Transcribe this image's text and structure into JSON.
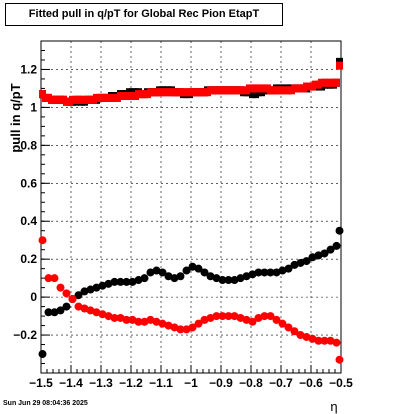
{
  "chart_data": {
    "type": "scatter",
    "title": "Fitted pull in q/pT for Global Rec Pion EtapT",
    "ylabel": "pull in q/pT",
    "xlabel": "η",
    "xlim": [
      -1.5,
      -0.5
    ],
    "ylim": [
      -0.4,
      1.35
    ],
    "x_ticks": [
      -1.5,
      -1.4,
      -1.3,
      -1.2,
      -1.1,
      -1,
      -0.9,
      -0.8,
      -0.7,
      -0.6,
      -0.5
    ],
    "x_tick_labels": [
      "−1.5",
      "−1.4",
      "−1.3",
      "−1.2",
      "−1.1",
      "−1",
      "−0.9",
      "−0.8",
      "−0.7",
      "−0.6",
      "−0.5"
    ],
    "y_ticks": [
      -0.2,
      0,
      0.2,
      0.4,
      0.6,
      0.8,
      1,
      1.2
    ],
    "y_tick_labels": [
      "−0.2",
      "0",
      "0.2",
      "0.4",
      "0.6",
      "0.8",
      "1",
      "1.2"
    ],
    "grid": true,
    "marker": "square",
    "series": [
      {
        "color": "#000000",
        "marker": "square",
        "x": [
          -1.495,
          -1.485,
          -1.475,
          -1.465,
          -1.455,
          -1.445,
          -1.435,
          -1.425,
          -1.415,
          -1.405,
          -1.395,
          -1.385,
          -1.375,
          -1.365,
          -1.355,
          -1.345,
          -1.335,
          -1.325,
          -1.315,
          -1.305,
          -1.295,
          -1.285,
          -1.275,
          -1.265,
          -1.255,
          -1.245,
          -1.235,
          -1.225,
          -1.215,
          -1.205,
          -1.195,
          -1.185,
          -1.175,
          -1.165,
          -1.155,
          -1.145,
          -1.135,
          -1.125,
          -1.115,
          -1.105,
          -1.095,
          -1.085,
          -1.075,
          -1.065,
          -1.055,
          -1.045,
          -1.035,
          -1.025,
          -1.015,
          -1.005,
          -0.995,
          -0.985,
          -0.975,
          -0.965,
          -0.955,
          -0.945,
          -0.935,
          -0.925,
          -0.915,
          -0.905,
          -0.895,
          -0.885,
          -0.875,
          -0.865,
          -0.855,
          -0.845,
          -0.835,
          -0.825,
          -0.815,
          -0.805,
          -0.795,
          -0.785,
          -0.775,
          -0.765,
          -0.755,
          -0.745,
          -0.735,
          -0.725,
          -0.715,
          -0.705,
          -0.695,
          -0.685,
          -0.675,
          -0.665,
          -0.655,
          -0.645,
          -0.635,
          -0.625,
          -0.615,
          -0.605,
          -0.595,
          -0.585,
          -0.575,
          -0.565,
          -0.555,
          -0.545,
          -0.535,
          -0.525,
          -0.515,
          -0.505
        ],
        "y": [
          1.07,
          1.05,
          1.05,
          1.04,
          1.04,
          1.04,
          1.04,
          1.04,
          1.03,
          1.03,
          1.03,
          1.03,
          1.04,
          1.03,
          1.03,
          1.04,
          1.04,
          1.04,
          1.04,
          1.05,
          1.05,
          1.05,
          1.05,
          1.06,
          1.06,
          1.06,
          1.07,
          1.07,
          1.07,
          1.08,
          1.08,
          1.08,
          1.08,
          1.07,
          1.07,
          1.08,
          1.08,
          1.08,
          1.08,
          1.09,
          1.09,
          1.09,
          1.09,
          1.09,
          1.08,
          1.08,
          1.08,
          1.07,
          1.07,
          1.07,
          1.08,
          1.08,
          1.08,
          1.08,
          1.08,
          1.09,
          1.09,
          1.09,
          1.09,
          1.09,
          1.09,
          1.09,
          1.09,
          1.09,
          1.09,
          1.09,
          1.09,
          1.08,
          1.08,
          1.08,
          1.07,
          1.07,
          1.08,
          1.08,
          1.09,
          1.09,
          1.09,
          1.09,
          1.1,
          1.1,
          1.1,
          1.1,
          1.1,
          1.1,
          1.1,
          1.1,
          1.1,
          1.1,
          1.1,
          1.11,
          1.11,
          1.11,
          1.11,
          1.11,
          1.12,
          1.12,
          1.12,
          1.12,
          1.13,
          1.24
        ]
      },
      {
        "color": "#ff0000",
        "marker": "square",
        "x": [
          -1.495,
          -1.485,
          -1.475,
          -1.465,
          -1.455,
          -1.445,
          -1.435,
          -1.425,
          -1.415,
          -1.405,
          -1.395,
          -1.385,
          -1.375,
          -1.365,
          -1.355,
          -1.345,
          -1.335,
          -1.325,
          -1.315,
          -1.305,
          -1.295,
          -1.285,
          -1.275,
          -1.265,
          -1.255,
          -1.245,
          -1.235,
          -1.225,
          -1.215,
          -1.205,
          -1.195,
          -1.185,
          -1.175,
          -1.165,
          -1.155,
          -1.145,
          -1.135,
          -1.125,
          -1.115,
          -1.105,
          -1.095,
          -1.085,
          -1.075,
          -1.065,
          -1.055,
          -1.045,
          -1.035,
          -1.025,
          -1.015,
          -1.005,
          -0.995,
          -0.985,
          -0.975,
          -0.965,
          -0.955,
          -0.945,
          -0.935,
          -0.925,
          -0.915,
          -0.905,
          -0.895,
          -0.885,
          -0.875,
          -0.865,
          -0.855,
          -0.845,
          -0.835,
          -0.825,
          -0.815,
          -0.805,
          -0.795,
          -0.785,
          -0.775,
          -0.765,
          -0.755,
          -0.745,
          -0.735,
          -0.725,
          -0.715,
          -0.705,
          -0.695,
          -0.685,
          -0.675,
          -0.665,
          -0.655,
          -0.645,
          -0.635,
          -0.625,
          -0.615,
          -0.605,
          -0.595,
          -0.585,
          -0.575,
          -0.565,
          -0.555,
          -0.545,
          -0.535,
          -0.525,
          -0.515,
          -0.505
        ],
        "y": [
          1.07,
          1.05,
          1.05,
          1.04,
          1.04,
          1.04,
          1.04,
          1.04,
          1.03,
          1.03,
          1.04,
          1.04,
          1.04,
          1.04,
          1.04,
          1.04,
          1.04,
          1.04,
          1.05,
          1.05,
          1.05,
          1.05,
          1.05,
          1.05,
          1.05,
          1.05,
          1.06,
          1.06,
          1.06,
          1.06,
          1.06,
          1.06,
          1.07,
          1.07,
          1.07,
          1.07,
          1.08,
          1.08,
          1.08,
          1.08,
          1.08,
          1.08,
          1.08,
          1.08,
          1.08,
          1.08,
          1.08,
          1.08,
          1.08,
          1.08,
          1.08,
          1.08,
          1.08,
          1.08,
          1.08,
          1.08,
          1.09,
          1.09,
          1.09,
          1.09,
          1.09,
          1.09,
          1.09,
          1.09,
          1.09,
          1.09,
          1.09,
          1.09,
          1.09,
          1.1,
          1.1,
          1.1,
          1.1,
          1.1,
          1.1,
          1.1,
          1.09,
          1.09,
          1.09,
          1.09,
          1.09,
          1.09,
          1.09,
          1.09,
          1.1,
          1.1,
          1.1,
          1.1,
          1.11,
          1.11,
          1.11,
          1.12,
          1.12,
          1.13,
          1.13,
          1.13,
          1.13,
          1.13,
          1.13,
          1.22
        ]
      },
      {
        "color": "#000000",
        "marker": "circle",
        "x": [
          -1.495,
          -1.475,
          -1.455,
          -1.435,
          -1.415,
          -1.395,
          -1.375,
          -1.355,
          -1.335,
          -1.315,
          -1.295,
          -1.275,
          -1.255,
          -1.235,
          -1.215,
          -1.195,
          -1.175,
          -1.155,
          -1.135,
          -1.115,
          -1.095,
          -1.075,
          -1.055,
          -1.035,
          -1.015,
          -0.995,
          -0.975,
          -0.955,
          -0.935,
          -0.915,
          -0.895,
          -0.875,
          -0.855,
          -0.835,
          -0.815,
          -0.795,
          -0.775,
          -0.755,
          -0.735,
          -0.715,
          -0.695,
          -0.675,
          -0.655,
          -0.635,
          -0.615,
          -0.595,
          -0.575,
          -0.555,
          -0.535,
          -0.515,
          -0.505
        ],
        "y": [
          -0.3,
          -0.08,
          -0.08,
          -0.07,
          -0.05,
          -0.01,
          0.01,
          0.03,
          0.04,
          0.05,
          0.06,
          0.07,
          0.08,
          0.08,
          0.08,
          0.08,
          0.09,
          0.1,
          0.13,
          0.14,
          0.13,
          0.11,
          0.1,
          0.11,
          0.14,
          0.16,
          0.15,
          0.13,
          0.11,
          0.1,
          0.09,
          0.09,
          0.09,
          0.1,
          0.11,
          0.12,
          0.13,
          0.13,
          0.13,
          0.13,
          0.14,
          0.15,
          0.17,
          0.18,
          0.19,
          0.21,
          0.22,
          0.23,
          0.25,
          0.27,
          0.35
        ]
      },
      {
        "color": "#ff0000",
        "marker": "circle",
        "x": [
          -1.495,
          -1.475,
          -1.455,
          -1.435,
          -1.415,
          -1.395,
          -1.375,
          -1.355,
          -1.335,
          -1.315,
          -1.295,
          -1.275,
          -1.255,
          -1.235,
          -1.215,
          -1.195,
          -1.175,
          -1.155,
          -1.135,
          -1.115,
          -1.095,
          -1.075,
          -1.055,
          -1.035,
          -1.015,
          -0.995,
          -0.975,
          -0.955,
          -0.935,
          -0.915,
          -0.895,
          -0.875,
          -0.855,
          -0.835,
          -0.815,
          -0.795,
          -0.775,
          -0.755,
          -0.735,
          -0.715,
          -0.695,
          -0.675,
          -0.655,
          -0.635,
          -0.615,
          -0.595,
          -0.575,
          -0.555,
          -0.535,
          -0.515,
          -0.505
        ],
        "y": [
          0.3,
          0.1,
          0.1,
          0.05,
          0.02,
          -0.01,
          -0.05,
          -0.06,
          -0.07,
          -0.08,
          -0.09,
          -0.1,
          -0.11,
          -0.11,
          -0.12,
          -0.12,
          -0.13,
          -0.13,
          -0.12,
          -0.13,
          -0.14,
          -0.15,
          -0.16,
          -0.17,
          -0.17,
          -0.16,
          -0.14,
          -0.12,
          -0.11,
          -0.1,
          -0.1,
          -0.1,
          -0.1,
          -0.11,
          -0.12,
          -0.13,
          -0.11,
          -0.1,
          -0.1,
          -0.12,
          -0.14,
          -0.16,
          -0.18,
          -0.2,
          -0.21,
          -0.22,
          -0.23,
          -0.23,
          -0.23,
          -0.24,
          -0.33
        ]
      }
    ]
  },
  "footer": {
    "timestamp": "Sun Jun 29 08:04:36 2025"
  },
  "colors": {
    "frame": "#000000",
    "grid": "#000000",
    "red": "#ff0000",
    "black": "#000000"
  }
}
